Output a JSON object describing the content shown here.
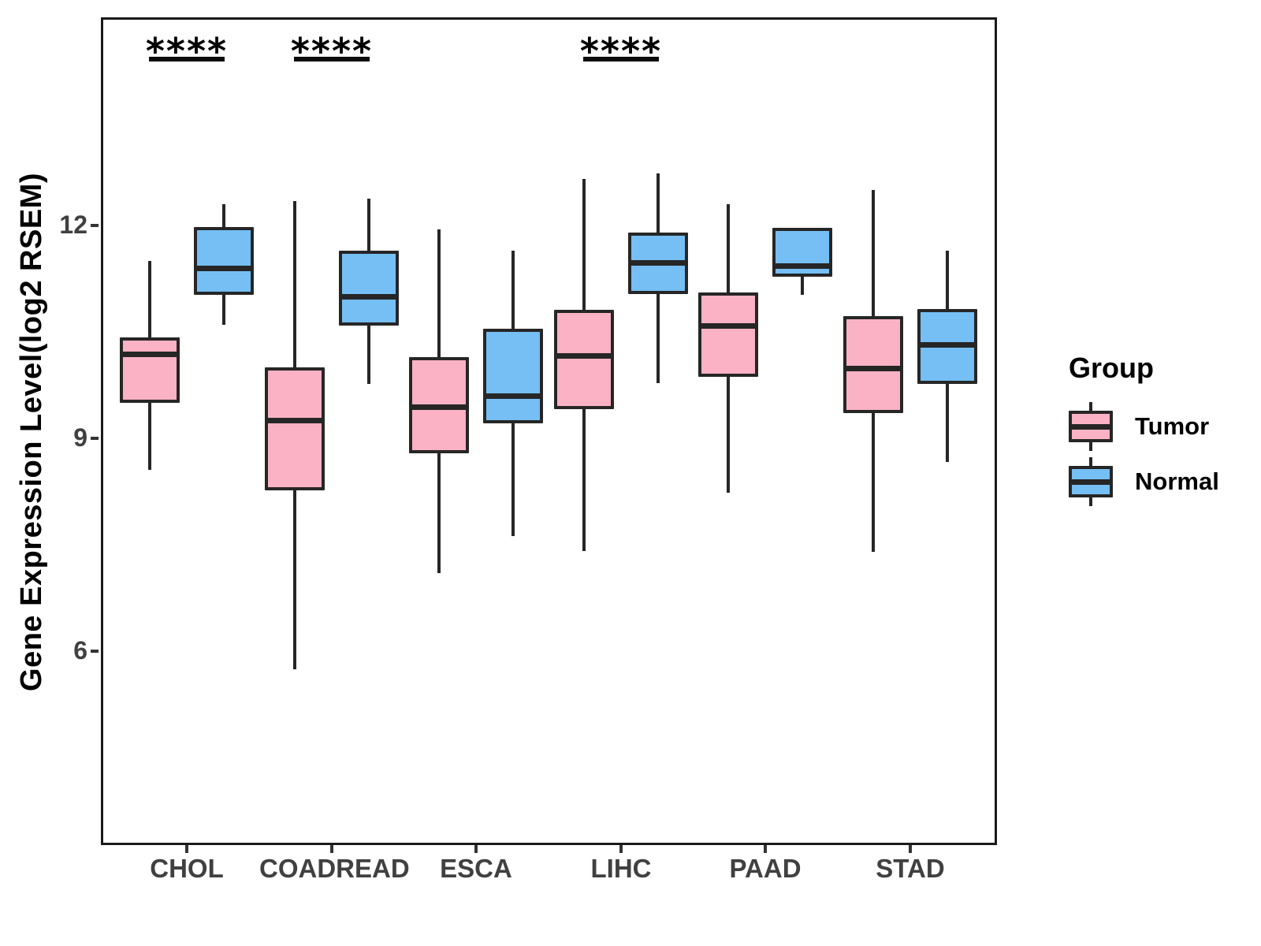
{
  "chart_data": {
    "type": "boxplot",
    "title": "",
    "xlabel": "",
    "ylabel": "Gene Expression Level(log2 RSEM)",
    "categories": [
      "CHOL",
      "COADREAD",
      "ESCA",
      "LIHC",
      "PAAD",
      "STAD"
    ],
    "yticks": [
      6,
      9,
      12
    ],
    "ylim": [
      3.3,
      14.9
    ],
    "grid": false,
    "legend_position": "right",
    "groups": [
      {
        "name": "Tumor",
        "color": "#FBB2C4"
      },
      {
        "name": "Normal",
        "color": "#75BFF4"
      }
    ],
    "stroke_color": "#262626",
    "series": [
      {
        "name": "Tumor",
        "boxes": [
          {
            "category": "CHOL",
            "min": 8.55,
            "q1": 9.5,
            "median": 10.18,
            "q3": 10.42,
            "max": 11.5
          },
          {
            "category": "COADREAD",
            "min": 5.75,
            "q1": 8.27,
            "median": 9.25,
            "q3": 10.0,
            "max": 12.35
          },
          {
            "category": "ESCA",
            "min": 7.1,
            "q1": 8.79,
            "median": 9.44,
            "q3": 10.14,
            "max": 11.94
          },
          {
            "category": "LIHC",
            "min": 7.4,
            "q1": 9.41,
            "median": 10.16,
            "q3": 10.81,
            "max": 12.65
          },
          {
            "category": "PAAD",
            "min": 8.23,
            "q1": 9.87,
            "median": 10.58,
            "q3": 11.06,
            "max": 12.3
          },
          {
            "category": "STAD",
            "min": 7.4,
            "q1": 9.35,
            "median": 9.98,
            "q3": 10.72,
            "max": 12.5
          }
        ]
      },
      {
        "name": "Normal",
        "boxes": [
          {
            "category": "CHOL",
            "min": 10.6,
            "q1": 11.03,
            "median": 11.39,
            "q3": 11.98,
            "max": 12.3
          },
          {
            "category": "COADREAD",
            "min": 9.77,
            "q1": 10.6,
            "median": 11.0,
            "q3": 11.65,
            "max": 12.38
          },
          {
            "category": "ESCA",
            "min": 7.62,
            "q1": 9.21,
            "median": 9.6,
            "q3": 10.54,
            "max": 11.64
          },
          {
            "category": "LIHC",
            "min": 9.77,
            "q1": 11.03,
            "median": 11.47,
            "q3": 11.9,
            "max": 12.73
          },
          {
            "category": "PAAD",
            "min": 11.03,
            "q1": 11.28,
            "median": 11.43,
            "q3": 11.97,
            "max": 11.97
          },
          {
            "category": "STAD",
            "min": 8.66,
            "q1": 9.77,
            "median": 10.32,
            "q3": 10.82,
            "max": 11.64
          }
        ]
      }
    ],
    "significance": [
      {
        "category": "CHOL",
        "label": "****"
      },
      {
        "category": "COADREAD",
        "label": "****"
      },
      {
        "category": "LIHC",
        "label": "****"
      }
    ],
    "legend": {
      "title": "Group",
      "entries": [
        "Tumor",
        "Normal"
      ]
    }
  }
}
